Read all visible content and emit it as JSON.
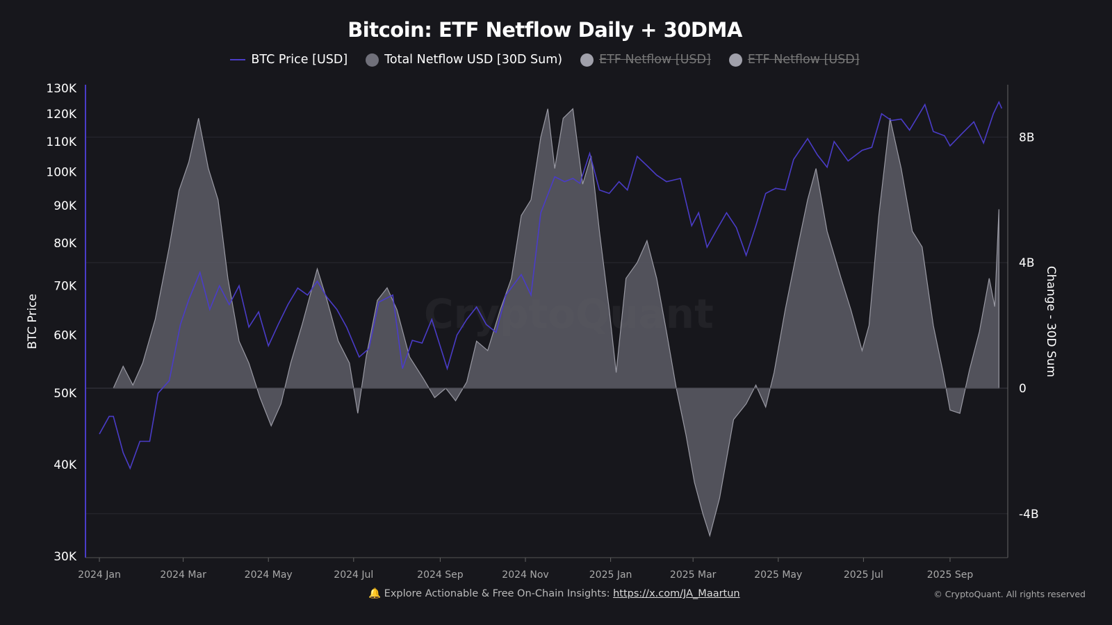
{
  "chart_data": {
    "type": "line",
    "title": "Bitcoin: ETF Netflow Daily + 30DMA",
    "legend": [
      {
        "name": "BTC Price [USD]",
        "color": "#4a3cc8",
        "visible": true
      },
      {
        "name": "Total Netflow USD [30D Sum)",
        "color": "#70707a",
        "visible": true
      },
      {
        "name": "ETF Netflow [USD]",
        "color": "#a0a0aa",
        "visible": false
      },
      {
        "name": "ETF Netflow [USD]",
        "color": "#a0a0aa",
        "visible": false
      }
    ],
    "legend_position": "top",
    "y_left": {
      "label": "BTC Price",
      "scale": "log",
      "range": [
        30000,
        130000
      ],
      "ticks": [
        {
          "v": 30000,
          "t": "30K"
        },
        {
          "v": 40000,
          "t": "40K"
        },
        {
          "v": 50000,
          "t": "50K"
        },
        {
          "v": 60000,
          "t": "60K"
        },
        {
          "v": 70000,
          "t": "70K"
        },
        {
          "v": 80000,
          "t": "80K"
        },
        {
          "v": 90000,
          "t": "90K"
        },
        {
          "v": 100000,
          "t": "100K"
        },
        {
          "v": 110000,
          "t": "110K"
        },
        {
          "v": 120000,
          "t": "120K"
        },
        {
          "v": 130000,
          "t": "130K"
        }
      ]
    },
    "y_right": {
      "label": "Change - 30D Sum",
      "unit": "B",
      "range": [
        -5.4,
        9.7
      ],
      "ticks": [
        {
          "v": -4,
          "t": "-4B"
        },
        {
          "v": 0,
          "t": "0"
        },
        {
          "v": 4,
          "t": "4B"
        },
        {
          "v": 8,
          "t": "8B"
        }
      ]
    },
    "x_ticks": [
      {
        "d": "2024-01-01",
        "t": "2024 Jan"
      },
      {
        "d": "2024-03-01",
        "t": "2024 Mar"
      },
      {
        "d": "2024-05-01",
        "t": "2024 May"
      },
      {
        "d": "2024-07-01",
        "t": "2024 Jul"
      },
      {
        "d": "2024-09-01",
        "t": "2024 Sep"
      },
      {
        "d": "2024-11-01",
        "t": "2024 Nov"
      },
      {
        "d": "2025-01-01",
        "t": "2025 Jan"
      },
      {
        "d": "2025-03-01",
        "t": "2025 Mar"
      },
      {
        "d": "2025-05-01",
        "t": "2025 May"
      },
      {
        "d": "2025-07-01",
        "t": "2025 Jul"
      },
      {
        "d": "2025-09-01",
        "t": "2025 Sep"
      }
    ],
    "grid": true,
    "series": [
      {
        "name": "BTC Price [USD]",
        "axis": "left",
        "type": "line",
        "color": "#4a3cc8",
        "points": [
          [
            "2024-01-01",
            44000
          ],
          [
            "2024-01-08",
            46500
          ],
          [
            "2024-01-11",
            46500
          ],
          [
            "2024-01-18",
            41500
          ],
          [
            "2024-01-23",
            39500
          ],
          [
            "2024-01-30",
            43000
          ],
          [
            "2024-02-06",
            43000
          ],
          [
            "2024-02-12",
            50000
          ],
          [
            "2024-02-20",
            52000
          ],
          [
            "2024-02-28",
            62000
          ],
          [
            "2024-03-05",
            67000
          ],
          [
            "2024-03-13",
            73000
          ],
          [
            "2024-03-20",
            65000
          ],
          [
            "2024-03-27",
            70000
          ],
          [
            "2024-04-03",
            66000
          ],
          [
            "2024-04-10",
            70000
          ],
          [
            "2024-04-17",
            61500
          ],
          [
            "2024-04-24",
            64500
          ],
          [
            "2024-05-01",
            58000
          ],
          [
            "2024-05-08",
            62000
          ],
          [
            "2024-05-15",
            66000
          ],
          [
            "2024-05-22",
            69500
          ],
          [
            "2024-05-29",
            68000
          ],
          [
            "2024-06-05",
            71000
          ],
          [
            "2024-06-12",
            67500
          ],
          [
            "2024-06-19",
            65000
          ],
          [
            "2024-06-26",
            61500
          ],
          [
            "2024-07-05",
            56000
          ],
          [
            "2024-07-12",
            57500
          ],
          [
            "2024-07-19",
            66500
          ],
          [
            "2024-07-29",
            68000
          ],
          [
            "2024-08-05",
            54000
          ],
          [
            "2024-08-12",
            59000
          ],
          [
            "2024-08-19",
            58500
          ],
          [
            "2024-08-26",
            63000
          ],
          [
            "2024-09-06",
            54000
          ],
          [
            "2024-09-13",
            60000
          ],
          [
            "2024-09-20",
            63000
          ],
          [
            "2024-09-27",
            65500
          ],
          [
            "2024-10-04",
            62000
          ],
          [
            "2024-10-11",
            60500
          ],
          [
            "2024-10-18",
            68000
          ],
          [
            "2024-10-29",
            72500
          ],
          [
            "2024-11-05",
            68000
          ],
          [
            "2024-11-12",
            88000
          ],
          [
            "2024-11-22",
            98500
          ],
          [
            "2024-11-29",
            97000
          ],
          [
            "2024-12-05",
            98000
          ],
          [
            "2024-12-10",
            96500
          ],
          [
            "2024-12-17",
            106000
          ],
          [
            "2024-12-24",
            94500
          ],
          [
            "2024-12-31",
            93500
          ],
          [
            "2025-01-07",
            97000
          ],
          [
            "2025-01-13",
            94500
          ],
          [
            "2025-01-20",
            105000
          ],
          [
            "2025-01-27",
            102000
          ],
          [
            "2025-02-03",
            99000
          ],
          [
            "2025-02-10",
            97000
          ],
          [
            "2025-02-20",
            98000
          ],
          [
            "2025-02-28",
            84500
          ],
          [
            "2025-03-05",
            88000
          ],
          [
            "2025-03-11",
            79000
          ],
          [
            "2025-03-18",
            83500
          ],
          [
            "2025-03-25",
            88000
          ],
          [
            "2025-04-01",
            84000
          ],
          [
            "2025-04-08",
            77000
          ],
          [
            "2025-04-15",
            84500
          ],
          [
            "2025-04-22",
            93500
          ],
          [
            "2025-04-29",
            95000
          ],
          [
            "2025-05-06",
            94500
          ],
          [
            "2025-05-12",
            104000
          ],
          [
            "2025-05-22",
            111000
          ],
          [
            "2025-05-29",
            105500
          ],
          [
            "2025-06-05",
            101500
          ],
          [
            "2025-06-10",
            110000
          ],
          [
            "2025-06-20",
            103500
          ],
          [
            "2025-06-30",
            107000
          ],
          [
            "2025-07-07",
            108000
          ],
          [
            "2025-07-14",
            120000
          ],
          [
            "2025-07-21",
            117500
          ],
          [
            "2025-07-28",
            118000
          ],
          [
            "2025-08-03",
            114000
          ],
          [
            "2025-08-14",
            123500
          ],
          [
            "2025-08-20",
            113500
          ],
          [
            "2025-08-28",
            112000
          ],
          [
            "2025-09-01",
            108500
          ],
          [
            "2025-09-10",
            113000
          ],
          [
            "2025-09-18",
            117000
          ],
          [
            "2025-09-25",
            109500
          ],
          [
            "2025-10-02",
            120000
          ],
          [
            "2025-10-06",
            124500
          ],
          [
            "2025-10-08",
            122000
          ]
        ]
      },
      {
        "name": "Total Netflow USD [30D Sum)",
        "axis": "right",
        "type": "area",
        "unit": "B USD",
        "color": "#5d5d66",
        "points": [
          [
            "2024-01-11",
            0
          ],
          [
            "2024-01-18",
            0.7
          ],
          [
            "2024-01-25",
            0.1
          ],
          [
            "2024-02-01",
            0.8
          ],
          [
            "2024-02-10",
            2.2
          ],
          [
            "2024-02-20",
            4.5
          ],
          [
            "2024-02-27",
            6.3
          ],
          [
            "2024-03-05",
            7.2
          ],
          [
            "2024-03-12",
            8.6
          ],
          [
            "2024-03-19",
            7.0
          ],
          [
            "2024-03-26",
            6.0
          ],
          [
            "2024-04-02",
            3.5
          ],
          [
            "2024-04-10",
            1.5
          ],
          [
            "2024-04-17",
            0.8
          ],
          [
            "2024-04-25",
            -0.3
          ],
          [
            "2024-05-03",
            -1.2
          ],
          [
            "2024-05-10",
            -0.5
          ],
          [
            "2024-05-17",
            0.8
          ],
          [
            "2024-05-25",
            2.0
          ],
          [
            "2024-06-05",
            3.8
          ],
          [
            "2024-06-12",
            2.8
          ],
          [
            "2024-06-20",
            1.5
          ],
          [
            "2024-06-28",
            0.8
          ],
          [
            "2024-07-04",
            -0.8
          ],
          [
            "2024-07-10",
            1.0
          ],
          [
            "2024-07-18",
            2.8
          ],
          [
            "2024-07-25",
            3.2
          ],
          [
            "2024-08-01",
            2.5
          ],
          [
            "2024-08-10",
            1.0
          ],
          [
            "2024-08-20",
            0.3
          ],
          [
            "2024-08-28",
            -0.3
          ],
          [
            "2024-09-05",
            0.0
          ],
          [
            "2024-09-12",
            -0.4
          ],
          [
            "2024-09-20",
            0.2
          ],
          [
            "2024-09-27",
            1.5
          ],
          [
            "2024-10-05",
            1.2
          ],
          [
            "2024-10-14",
            2.5
          ],
          [
            "2024-10-22",
            3.5
          ],
          [
            "2024-10-29",
            5.5
          ],
          [
            "2024-11-05",
            6.0
          ],
          [
            "2024-11-12",
            8.0
          ],
          [
            "2024-11-17",
            8.9
          ],
          [
            "2024-11-22",
            7.0
          ],
          [
            "2024-11-28",
            8.6
          ],
          [
            "2024-12-05",
            8.9
          ],
          [
            "2024-12-12",
            6.5
          ],
          [
            "2024-12-18",
            7.4
          ],
          [
            "2024-12-24",
            5.0
          ],
          [
            "2024-12-31",
            2.5
          ],
          [
            "2025-01-05",
            0.5
          ],
          [
            "2025-01-12",
            3.5
          ],
          [
            "2025-01-20",
            4.0
          ],
          [
            "2025-01-27",
            4.7
          ],
          [
            "2025-02-03",
            3.5
          ],
          [
            "2025-02-10",
            1.8
          ],
          [
            "2025-02-17",
            0.0
          ],
          [
            "2025-02-24",
            -1.5
          ],
          [
            "2025-03-02",
            -3.0
          ],
          [
            "2025-03-08",
            -4.0
          ],
          [
            "2025-03-13",
            -4.7
          ],
          [
            "2025-03-20",
            -3.5
          ],
          [
            "2025-03-30",
            -1.0
          ],
          [
            "2025-04-08",
            -0.5
          ],
          [
            "2025-04-15",
            0.1
          ],
          [
            "2025-04-22",
            -0.6
          ],
          [
            "2025-04-28",
            0.5
          ],
          [
            "2025-05-06",
            2.5
          ],
          [
            "2025-05-15",
            4.5
          ],
          [
            "2025-05-22",
            6.0
          ],
          [
            "2025-05-28",
            7.0
          ],
          [
            "2025-06-05",
            5.0
          ],
          [
            "2025-06-15",
            3.5
          ],
          [
            "2025-06-22",
            2.5
          ],
          [
            "2025-06-30",
            1.2
          ],
          [
            "2025-07-05",
            2.0
          ],
          [
            "2025-07-12",
            5.5
          ],
          [
            "2025-07-20",
            8.6
          ],
          [
            "2025-07-28",
            7.0
          ],
          [
            "2025-08-05",
            5.0
          ],
          [
            "2025-08-12",
            4.5
          ],
          [
            "2025-08-20",
            2.0
          ],
          [
            "2025-08-27",
            0.5
          ],
          [
            "2025-09-01",
            -0.7
          ],
          [
            "2025-09-08",
            -0.8
          ],
          [
            "2025-09-15",
            0.6
          ],
          [
            "2025-09-22",
            1.8
          ],
          [
            "2025-09-29",
            3.5
          ],
          [
            "2025-10-03",
            2.6
          ],
          [
            "2025-10-06",
            5.7
          ]
        ]
      }
    ]
  },
  "watermark": "CryptoQuant",
  "footer": {
    "icon": "bell-icon",
    "text": "Explore Actionable & Free On-Chain Insights: ",
    "link": "https://x.com/JA_Maartun"
  },
  "copyright": "© CryptoQuant. All rights reserved"
}
